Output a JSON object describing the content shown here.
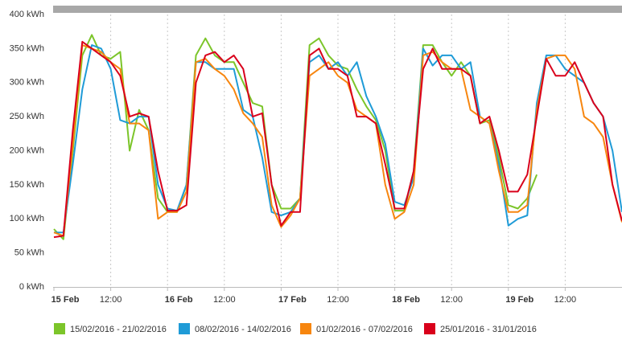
{
  "chart_data": {
    "type": "line",
    "x": [
      0,
      2,
      4,
      6,
      8,
      10,
      12,
      14,
      16,
      18,
      20,
      22,
      24,
      26,
      28,
      30,
      32,
      34,
      36,
      38,
      40,
      42,
      44,
      46,
      48,
      50,
      52,
      54,
      56,
      58,
      60,
      62,
      64,
      66,
      68,
      70,
      72,
      74,
      76,
      78,
      80,
      82,
      84,
      86,
      88,
      90,
      92,
      94,
      96,
      98,
      100,
      102,
      104,
      106,
      108,
      110,
      112,
      114,
      116,
      118,
      120
    ],
    "xlim": [
      0,
      120
    ],
    "xticks": [
      {
        "value": 0,
        "label": "15 Feb"
      },
      {
        "value": 12,
        "label": "12:00"
      },
      {
        "value": 24,
        "label": "16 Feb"
      },
      {
        "value": 36,
        "label": "12:00"
      },
      {
        "value": 48,
        "label": "17 Feb"
      },
      {
        "value": 60,
        "label": "12:00"
      },
      {
        "value": 72,
        "label": "18 Feb"
      },
      {
        "value": 84,
        "label": "12:00"
      },
      {
        "value": 96,
        "label": "19 Feb"
      },
      {
        "value": 108,
        "label": "12:00"
      }
    ],
    "ylim": [
      0,
      400
    ],
    "yticks": [
      {
        "value": 0,
        "label": "0 kWh"
      },
      {
        "value": 50,
        "label": "50 kWh"
      },
      {
        "value": 100,
        "label": "100 kWh"
      },
      {
        "value": 150,
        "label": "150 kWh"
      },
      {
        "value": 200,
        "label": "200 kWh"
      },
      {
        "value": 250,
        "label": "250 kWh"
      },
      {
        "value": 300,
        "label": "300 kWh"
      },
      {
        "value": 350,
        "label": "350 kWh"
      },
      {
        "value": 400,
        "label": "400 kWh"
      }
    ],
    "xgrid": true,
    "series": [
      {
        "name": "15/02/2016 - 21/02/2016",
        "color": "#7cc52a",
        "values": [
          85,
          70,
          200,
          340,
          370,
          340,
          335,
          345,
          200,
          260,
          230,
          130,
          110,
          110,
          150,
          340,
          365,
          340,
          330,
          330,
          300,
          270,
          265,
          150,
          115,
          115,
          130,
          355,
          365,
          340,
          325,
          320,
          290,
          265,
          245,
          200,
          112,
          112,
          170,
          355,
          355,
          330,
          310,
          330,
          310,
          240,
          245,
          190,
          120,
          115,
          130,
          165,
          null,
          null,
          null,
          null,
          null,
          null,
          null,
          null,
          null
        ]
      },
      {
        "name": "08/02/2016 - 14/02/2016",
        "color": "#1f9bd7",
        "values": [
          80,
          80,
          180,
          290,
          355,
          350,
          320,
          245,
          240,
          250,
          250,
          150,
          115,
          112,
          150,
          330,
          330,
          320,
          320,
          320,
          260,
          250,
          190,
          110,
          105,
          110,
          130,
          330,
          340,
          320,
          330,
          310,
          330,
          280,
          250,
          210,
          125,
          120,
          160,
          350,
          325,
          340,
          340,
          320,
          330,
          250,
          240,
          180,
          90,
          100,
          105,
          270,
          340,
          340,
          320,
          310,
          300,
          270,
          250,
          200,
          110
        ]
      },
      {
        "name": "01/02/2016 - 07/02/2016",
        "color": "#f7860f",
        "values": [
          80,
          75,
          210,
          355,
          350,
          345,
          330,
          320,
          240,
          240,
          230,
          100,
          110,
          110,
          140,
          330,
          335,
          320,
          310,
          290,
          255,
          240,
          220,
          120,
          88,
          105,
          130,
          310,
          320,
          330,
          310,
          300,
          260,
          250,
          240,
          150,
          100,
          110,
          150,
          340,
          345,
          330,
          320,
          320,
          260,
          250,
          240,
          170,
          110,
          110,
          120,
          260,
          335,
          340,
          340,
          320,
          250,
          240,
          220,
          150,
          95
        ]
      },
      {
        "name": "25/01/2016 - 31/01/2016",
        "color": "#d9001b",
        "values": [
          73,
          75,
          230,
          360,
          350,
          340,
          330,
          310,
          250,
          255,
          250,
          170,
          112,
          112,
          120,
          300,
          340,
          345,
          330,
          340,
          320,
          250,
          255,
          150,
          90,
          110,
          110,
          340,
          350,
          320,
          320,
          310,
          250,
          250,
          240,
          180,
          115,
          115,
          170,
          320,
          350,
          320,
          320,
          320,
          310,
          240,
          250,
          200,
          140,
          140,
          165,
          250,
          335,
          310,
          310,
          330,
          300,
          270,
          250,
          150,
          97
        ]
      }
    ]
  }
}
